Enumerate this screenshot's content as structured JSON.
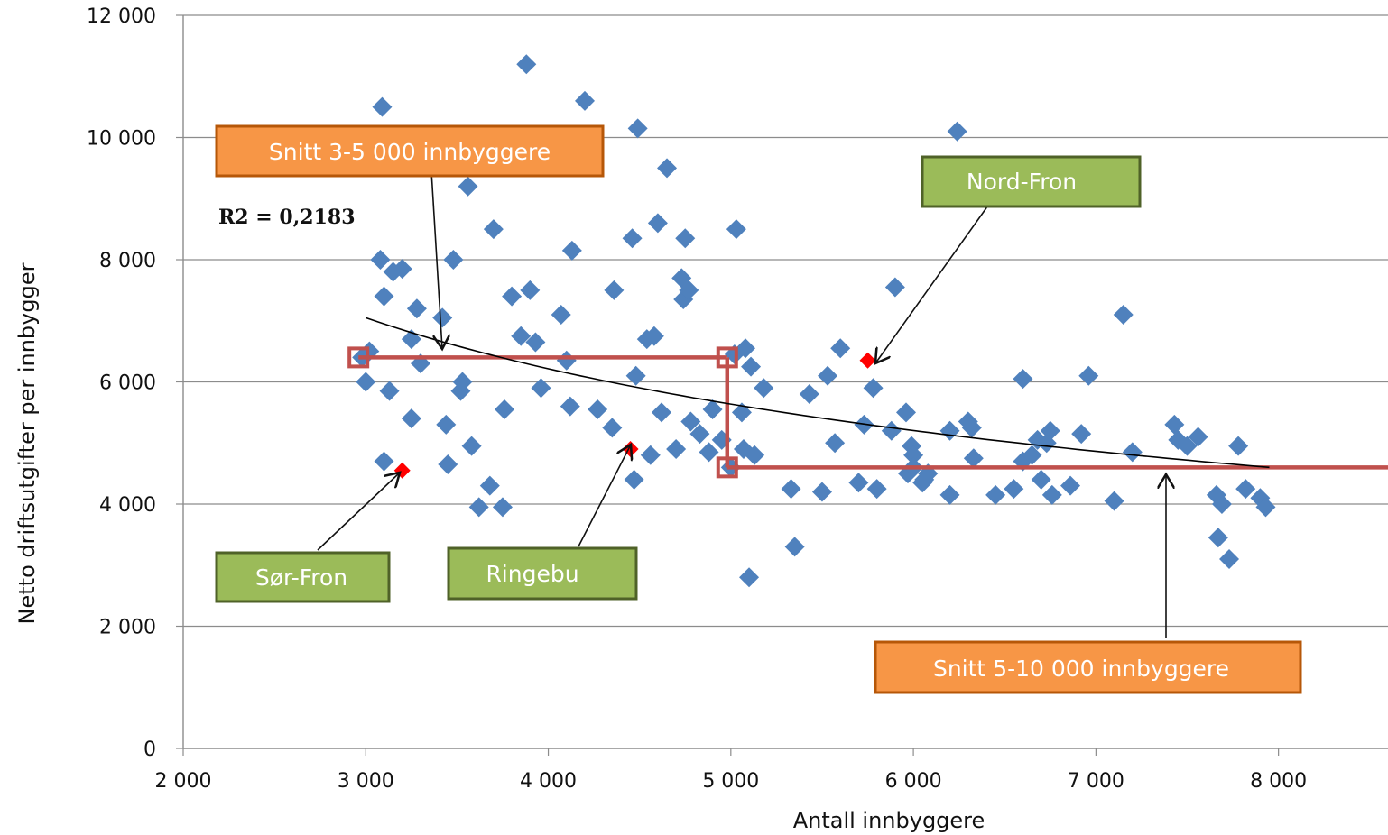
{
  "chart_data": {
    "type": "scatter",
    "xlabel": "Antall innbyggere",
    "ylabel": "Netto driftsutgifter per innbygger",
    "xlim": [
      2000,
      8600
    ],
    "ylim": [
      0,
      12000
    ],
    "x_ticks": [
      2000,
      3000,
      4000,
      5000,
      6000,
      7000,
      8000
    ],
    "x_tick_labels": [
      "2 000",
      "3 000",
      "4 000",
      "5 000",
      "6 000",
      "7 000",
      "8 000"
    ],
    "y_ticks": [
      0,
      2000,
      4000,
      6000,
      8000,
      10000,
      12000
    ],
    "y_tick_labels": [
      "0",
      "2 000",
      "4 000",
      "6 000",
      "8 000",
      "10 000",
      "12 000"
    ],
    "grid": "horizontal",
    "colors": {
      "points": "#4f81bd",
      "highlight": "#ff0000",
      "average_line": "#c0504d",
      "orange_box": "#f79646",
      "orange_border": "#b65708",
      "green_box": "#9bbb59",
      "green_border": "#4f6228"
    },
    "points": [
      {
        "x": 2980,
        "y": 6400
      },
      {
        "x": 3020,
        "y": 6500
      },
      {
        "x": 3000,
        "y": 6000
      },
      {
        "x": 3080,
        "y": 8000
      },
      {
        "x": 3090,
        "y": 10500
      },
      {
        "x": 3100,
        "y": 4700
      },
      {
        "x": 3100,
        "y": 7400
      },
      {
        "x": 3130,
        "y": 5850
      },
      {
        "x": 3150,
        "y": 7800
      },
      {
        "x": 3200,
        "y": 7850
      },
      {
        "x": 3250,
        "y": 6700
      },
      {
        "x": 3250,
        "y": 5400
      },
      {
        "x": 3280,
        "y": 7200
      },
      {
        "x": 3300,
        "y": 6300
      },
      {
        "x": 3420,
        "y": 7050
      },
      {
        "x": 3440,
        "y": 5300
      },
      {
        "x": 3450,
        "y": 4650
      },
      {
        "x": 3480,
        "y": 8000
      },
      {
        "x": 3520,
        "y": 5850
      },
      {
        "x": 3530,
        "y": 6000
      },
      {
        "x": 3560,
        "y": 9200
      },
      {
        "x": 3580,
        "y": 4950
      },
      {
        "x": 3620,
        "y": 3950
      },
      {
        "x": 3680,
        "y": 4300
      },
      {
        "x": 3700,
        "y": 8500
      },
      {
        "x": 3750,
        "y": 3950
      },
      {
        "x": 3760,
        "y": 5550
      },
      {
        "x": 3800,
        "y": 7400
      },
      {
        "x": 3850,
        "y": 6750
      },
      {
        "x": 3880,
        "y": 11200
      },
      {
        "x": 3900,
        "y": 7500
      },
      {
        "x": 3930,
        "y": 6650
      },
      {
        "x": 3960,
        "y": 5900
      },
      {
        "x": 4070,
        "y": 7100
      },
      {
        "x": 4100,
        "y": 6350
      },
      {
        "x": 4120,
        "y": 5600
      },
      {
        "x": 4130,
        "y": 8150
      },
      {
        "x": 4200,
        "y": 10600
      },
      {
        "x": 4270,
        "y": 5550
      },
      {
        "x": 4350,
        "y": 5250
      },
      {
        "x": 4360,
        "y": 7500
      },
      {
        "x": 4460,
        "y": 8350
      },
      {
        "x": 4470,
        "y": 4400
      },
      {
        "x": 4480,
        "y": 6100
      },
      {
        "x": 4490,
        "y": 10150
      },
      {
        "x": 4540,
        "y": 6700
      },
      {
        "x": 4560,
        "y": 4800
      },
      {
        "x": 4580,
        "y": 6750
      },
      {
        "x": 4600,
        "y": 8600
      },
      {
        "x": 4620,
        "y": 5500
      },
      {
        "x": 4650,
        "y": 9500
      },
      {
        "x": 4700,
        "y": 4900
      },
      {
        "x": 4730,
        "y": 7700
      },
      {
        "x": 4740,
        "y": 7350
      },
      {
        "x": 4750,
        "y": 8350
      },
      {
        "x": 4770,
        "y": 7500
      },
      {
        "x": 4780,
        "y": 5350
      },
      {
        "x": 4830,
        "y": 5150
      },
      {
        "x": 4880,
        "y": 4850
      },
      {
        "x": 4900,
        "y": 5550
      },
      {
        "x": 4950,
        "y": 5050
      },
      {
        "x": 5000,
        "y": 4600
      },
      {
        "x": 5020,
        "y": 6450
      },
      {
        "x": 5030,
        "y": 8500
      },
      {
        "x": 5060,
        "y": 5500
      },
      {
        "x": 5070,
        "y": 4900
      },
      {
        "x": 5080,
        "y": 6550
      },
      {
        "x": 5100,
        "y": 2800
      },
      {
        "x": 5110,
        "y": 6250
      },
      {
        "x": 5130,
        "y": 4800
      },
      {
        "x": 5180,
        "y": 5900
      },
      {
        "x": 5330,
        "y": 4250
      },
      {
        "x": 5350,
        "y": 3300
      },
      {
        "x": 5430,
        "y": 5800
      },
      {
        "x": 5500,
        "y": 4200
      },
      {
        "x": 5530,
        "y": 6100
      },
      {
        "x": 5570,
        "y": 5000
      },
      {
        "x": 5600,
        "y": 6550
      },
      {
        "x": 5700,
        "y": 4350
      },
      {
        "x": 5730,
        "y": 5300
      },
      {
        "x": 5780,
        "y": 5900
      },
      {
        "x": 5800,
        "y": 4250
      },
      {
        "x": 5880,
        "y": 5200
      },
      {
        "x": 5900,
        "y": 7550
      },
      {
        "x": 5960,
        "y": 5500
      },
      {
        "x": 5970,
        "y": 4500
      },
      {
        "x": 5990,
        "y": 4950
      },
      {
        "x": 6000,
        "y": 4800
      },
      {
        "x": 6000,
        "y": 4600
      },
      {
        "x": 6050,
        "y": 4350
      },
      {
        "x": 6060,
        "y": 4400
      },
      {
        "x": 6080,
        "y": 4500
      },
      {
        "x": 6200,
        "y": 5200
      },
      {
        "x": 6200,
        "y": 4150
      },
      {
        "x": 6240,
        "y": 10100
      },
      {
        "x": 6300,
        "y": 5350
      },
      {
        "x": 6320,
        "y": 5250
      },
      {
        "x": 6330,
        "y": 4750
      },
      {
        "x": 6450,
        "y": 4150
      },
      {
        "x": 6550,
        "y": 4250
      },
      {
        "x": 6600,
        "y": 4700
      },
      {
        "x": 6600,
        "y": 6050
      },
      {
        "x": 6650,
        "y": 4800
      },
      {
        "x": 6680,
        "y": 5050
      },
      {
        "x": 6700,
        "y": 4400
      },
      {
        "x": 6730,
        "y": 5000
      },
      {
        "x": 6750,
        "y": 5200
      },
      {
        "x": 6760,
        "y": 4150
      },
      {
        "x": 6860,
        "y": 4300
      },
      {
        "x": 6920,
        "y": 5150
      },
      {
        "x": 6960,
        "y": 6100
      },
      {
        "x": 7100,
        "y": 4050
      },
      {
        "x": 7150,
        "y": 7100
      },
      {
        "x": 7200,
        "y": 4850
      },
      {
        "x": 7430,
        "y": 5300
      },
      {
        "x": 7450,
        "y": 5050
      },
      {
        "x": 7500,
        "y": 4950
      },
      {
        "x": 7560,
        "y": 5100
      },
      {
        "x": 7660,
        "y": 4150
      },
      {
        "x": 7670,
        "y": 3450
      },
      {
        "x": 7690,
        "y": 4000
      },
      {
        "x": 7730,
        "y": 3100
      },
      {
        "x": 7780,
        "y": 4950
      },
      {
        "x": 7820,
        "y": 4250
      },
      {
        "x": 7900,
        "y": 4100
      },
      {
        "x": 7930,
        "y": 3950
      }
    ],
    "highlighted": [
      {
        "name": "Sør-Fron",
        "x": 3200,
        "y": 4550
      },
      {
        "name": "Ringebu",
        "x": 4450,
        "y": 4900
      },
      {
        "name": "Nord-Fron",
        "x": 5750,
        "y": 6350
      }
    ],
    "trendline": {
      "r2_label": "R2 = 0,2183",
      "x_from": 3000,
      "x_to": 7950,
      "y_at_start": 7050,
      "y_at_end": 4600
    },
    "averages": [
      {
        "label": "Snitt 3-5 000 innbyggere",
        "x_from": 2960,
        "x_to": 4980,
        "y": 6400
      },
      {
        "label": "Snitt 5-10 000 innbyggere",
        "x_from": 4980,
        "x_to": 8600,
        "y": 4600
      }
    ],
    "annotations": {
      "snitt_3_5": "Snitt 3-5 000 innbyggere",
      "snitt_5_10": "Snitt 5-10 000 innbyggere",
      "nord_fron": "Nord-Fron",
      "sor_fron": "Sør-Fron",
      "ringebu": "Ringebu",
      "r2": "R2 = 0,2183"
    }
  }
}
